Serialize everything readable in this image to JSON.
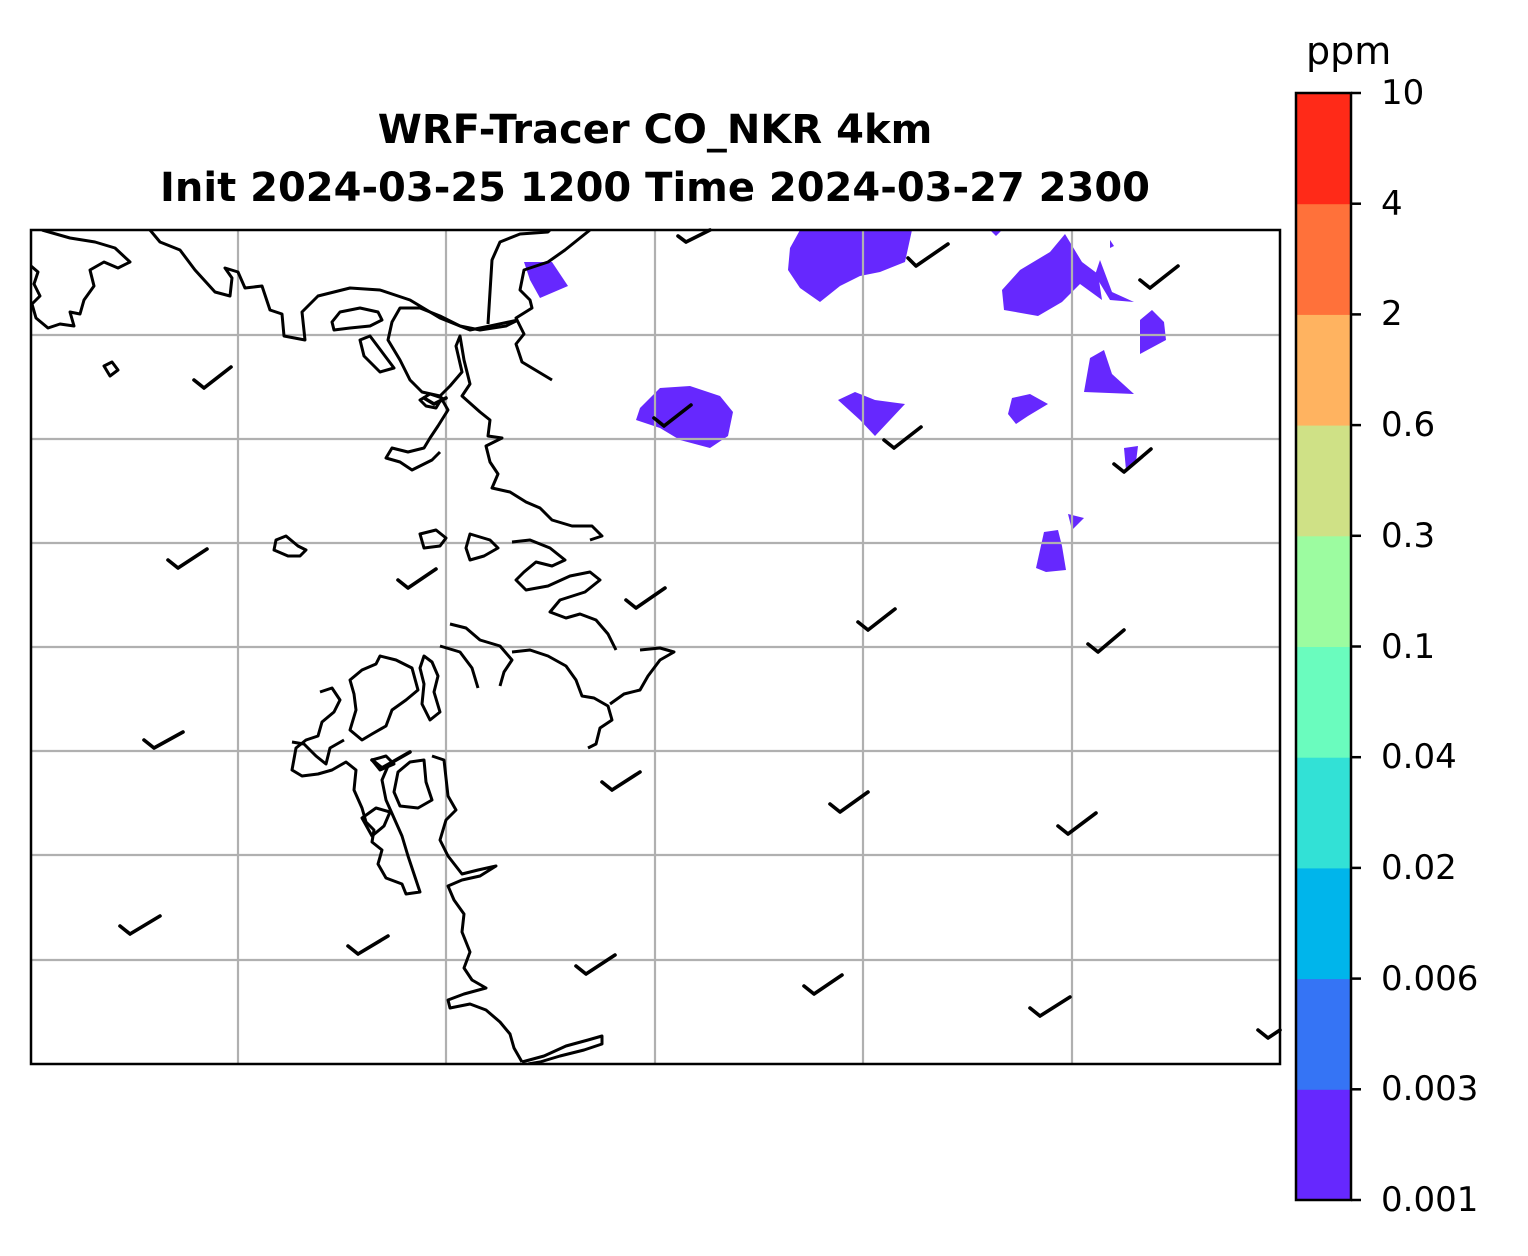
{
  "title": {
    "line1": "WRF-Tracer CO_NKR 4km",
    "line2": "Init 2024-03-25 1200 Time 2024-03-27 2300"
  },
  "colorbar": {
    "unit": "ppm",
    "levels": [
      "0.001",
      "0.003",
      "0.006",
      "0.02",
      "0.04",
      "0.1",
      "0.3",
      "0.6",
      "2",
      "4",
      "10"
    ],
    "colors": [
      "#6628fe",
      "#3574f5",
      "#00b5eb",
      "#32e1d6",
      "#6afcbe",
      "#9cfca0",
      "#cfe186",
      "#ffb360",
      "#ff713a",
      "#ff2a18"
    ]
  },
  "map": {
    "gridlines": true,
    "features": [
      "coastline",
      "wind-barbs",
      "tracer-contours"
    ],
    "line_color": "#000000",
    "grid_color": "#b0b0b0"
  }
}
